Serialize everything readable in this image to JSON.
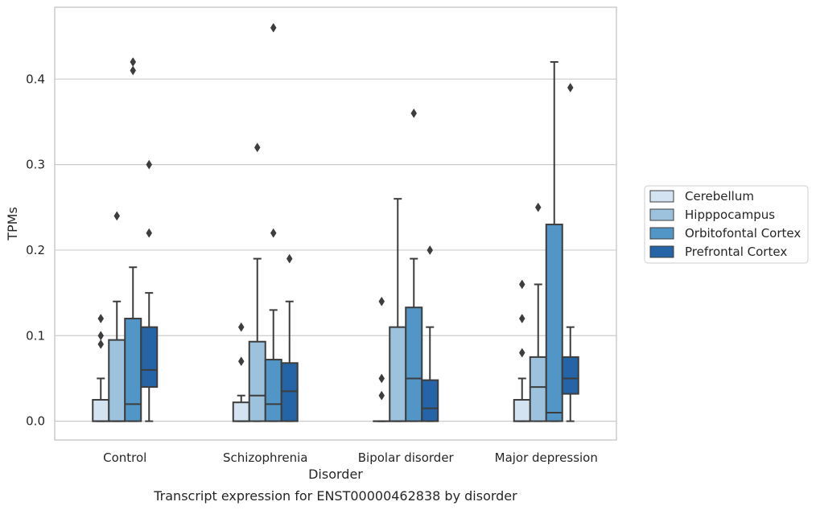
{
  "caption": "Transcript expression for ENST00000462838 by disorder",
  "chart_data": {
    "type": "box",
    "title": "",
    "xlabel": "Disorder",
    "ylabel": "TPMs",
    "ylim": [
      -0.022,
      0.484
    ],
    "yticks": [
      0.0,
      0.1,
      0.2,
      0.3,
      0.4
    ],
    "ytick_labels": [
      "0.0",
      "0.1",
      "0.2",
      "0.3",
      "0.4"
    ],
    "grid": "horizontal",
    "legend_position": "right",
    "categories": [
      "Control",
      "Schizophrenia",
      "Bipolar disorder",
      "Major depression"
    ],
    "series": [
      {
        "name": "Cerebellum",
        "color": "#d3e3f2",
        "boxes": [
          {
            "min": 0.0,
            "q1": 0.0,
            "median": 0.0,
            "q3": 0.025,
            "max": 0.05,
            "outliers": [
              0.09,
              0.1,
              0.12
            ]
          },
          {
            "min": 0.0,
            "q1": 0.0,
            "median": 0.0,
            "q3": 0.022,
            "max": 0.03,
            "outliers": [
              0.07,
              0.11
            ]
          },
          {
            "min": 0.0,
            "q1": 0.0,
            "median": 0.0,
            "q3": 0.0,
            "max": 0.0,
            "outliers": [
              0.03,
              0.05,
              0.14
            ]
          },
          {
            "min": 0.0,
            "q1": 0.0,
            "median": 0.0,
            "q3": 0.025,
            "max": 0.05,
            "outliers": [
              0.08,
              0.12,
              0.16
            ]
          }
        ]
      },
      {
        "name": "Hipppocampus",
        "color": "#9cc2dd",
        "boxes": [
          {
            "min": 0.0,
            "q1": 0.0,
            "median": 0.0,
            "q3": 0.095,
            "max": 0.14,
            "outliers": [
              0.24
            ]
          },
          {
            "min": 0.0,
            "q1": 0.0,
            "median": 0.03,
            "q3": 0.093,
            "max": 0.19,
            "outliers": [
              0.32
            ]
          },
          {
            "min": 0.0,
            "q1": 0.0,
            "median": 0.0,
            "q3": 0.11,
            "max": 0.26,
            "outliers": []
          },
          {
            "min": 0.0,
            "q1": 0.0,
            "median": 0.04,
            "q3": 0.075,
            "max": 0.16,
            "outliers": [
              0.25
            ]
          }
        ]
      },
      {
        "name": "Orbitofontal Cortex",
        "color": "#5196c6",
        "boxes": [
          {
            "min": 0.0,
            "q1": 0.0,
            "median": 0.02,
            "q3": 0.12,
            "max": 0.18,
            "outliers": [
              0.41,
              0.42
            ]
          },
          {
            "min": 0.0,
            "q1": 0.0,
            "median": 0.02,
            "q3": 0.072,
            "max": 0.13,
            "outliers": [
              0.22,
              0.46
            ]
          },
          {
            "min": 0.0,
            "q1": 0.0,
            "median": 0.05,
            "q3": 0.133,
            "max": 0.19,
            "outliers": [
              0.36
            ]
          },
          {
            "min": 0.0,
            "q1": 0.0,
            "median": 0.01,
            "q3": 0.23,
            "max": 0.42,
            "outliers": []
          }
        ]
      },
      {
        "name": "Prefrontal Cortex",
        "color": "#2464a7",
        "boxes": [
          {
            "min": 0.0,
            "q1": 0.04,
            "median": 0.06,
            "q3": 0.11,
            "max": 0.15,
            "outliers": [
              0.22,
              0.3
            ]
          },
          {
            "min": 0.0,
            "q1": 0.0,
            "median": 0.035,
            "q3": 0.068,
            "max": 0.14,
            "outliers": [
              0.19
            ]
          },
          {
            "min": 0.0,
            "q1": 0.0,
            "median": 0.015,
            "q3": 0.048,
            "max": 0.11,
            "outliers": [
              0.2
            ]
          },
          {
            "min": 0.0,
            "q1": 0.032,
            "median": 0.05,
            "q3": 0.075,
            "max": 0.11,
            "outliers": [
              0.39
            ]
          }
        ]
      }
    ]
  }
}
